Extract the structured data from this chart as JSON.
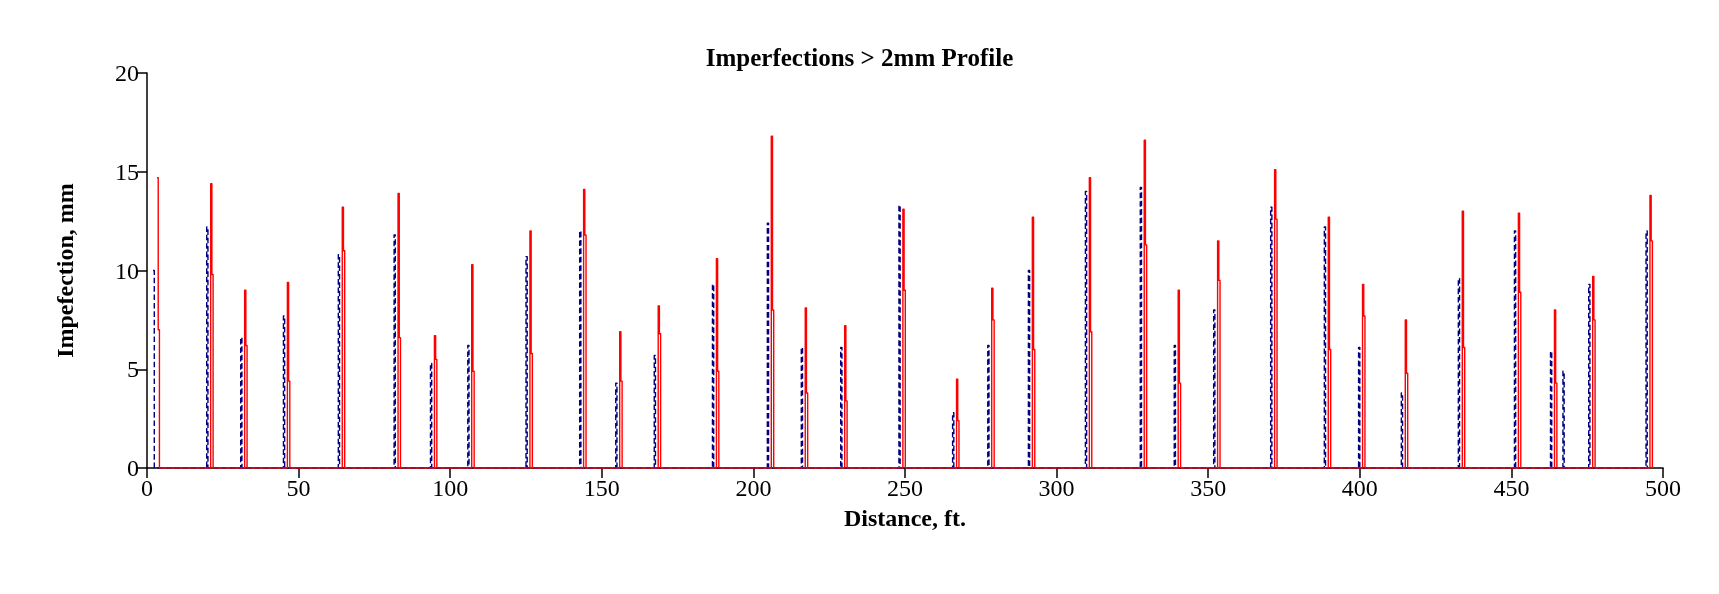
{
  "chart_data": {
    "type": "step",
    "title": "Imperfections > 2mm Profile",
    "xlabel": "Distance, ft.",
    "ylabel": "Impefection, mm",
    "xlim": [
      0,
      500
    ],
    "xticks": [
      0,
      50,
      100,
      150,
      200,
      250,
      300,
      350,
      400,
      450,
      500
    ],
    "ylim": [
      0,
      20
    ],
    "yticks": [
      0,
      5,
      10,
      15,
      20
    ],
    "series": [
      {
        "color": "#000080",
        "line_style": "dashed",
        "x": [
          2.0,
          2.4,
          19.7,
          20.1,
          30.9,
          31.3,
          45.0,
          45.4,
          63.1,
          63.5,
          81.5,
          81.9,
          93.5,
          93.9,
          105.8,
          106.2,
          125.0,
          125.4,
          142.7,
          143.1,
          154.6,
          155.0,
          167.3,
          167.7,
          186.5,
          186.9,
          204.6,
          205.0,
          215.8,
          216.2,
          228.8,
          229.2,
          248.0,
          248.4,
          265.7,
          266.1,
          277.3,
          277.7,
          290.7,
          291.1,
          309.5,
          309.9,
          327.6,
          328.0,
          338.8,
          339.2,
          351.8,
          352.2,
          370.6,
          371.0,
          388.3,
          388.7,
          399.6,
          400.0,
          413.7,
          414.1,
          432.5,
          432.9,
          451.0,
          451.4,
          462.9,
          463.3,
          467.0,
          467.4,
          475.5,
          475.9,
          494.4,
          494.8
        ],
        "values": [
          10.0,
          0,
          12.2,
          0,
          6.6,
          0,
          7.7,
          0,
          10.8,
          0,
          11.8,
          0,
          5.3,
          0,
          6.2,
          0,
          10.7,
          0,
          12.0,
          0,
          4.3,
          0,
          5.7,
          0,
          9.3,
          0,
          12.4,
          0,
          6.1,
          0,
          6.1,
          0,
          13.3,
          0,
          2.8,
          0,
          6.2,
          0,
          10.0,
          0,
          14.0,
          0,
          14.2,
          0,
          6.2,
          0,
          8.0,
          0,
          13.2,
          0,
          12.2,
          0,
          6.1,
          0,
          3.8,
          0,
          9.6,
          0,
          12.0,
          0,
          5.9,
          0,
          4.9,
          0,
          9.3,
          0,
          12.0,
          0
        ]
      },
      {
        "color": "#ff0000",
        "line_style": "solid",
        "x": [
          3.3,
          3.7,
          4.1,
          21.0,
          21.4,
          21.8,
          32.2,
          32.6,
          33.0,
          46.3,
          46.7,
          47.1,
          64.4,
          64.8,
          65.2,
          82.8,
          83.2,
          83.6,
          94.8,
          95.2,
          95.6,
          107.1,
          107.5,
          107.9,
          126.3,
          126.7,
          127.1,
          144.0,
          144.4,
          144.8,
          155.9,
          156.3,
          156.7,
          168.6,
          169.0,
          169.4,
          187.8,
          188.2,
          188.6,
          205.9,
          206.3,
          206.7,
          217.1,
          217.5,
          217.9,
          230.1,
          230.5,
          230.9,
          249.3,
          249.7,
          250.1,
          267.0,
          267.4,
          267.8,
          278.6,
          279.0,
          279.4,
          292.0,
          292.4,
          292.8,
          310.8,
          311.2,
          311.6,
          328.9,
          329.3,
          329.7,
          340.1,
          340.5,
          340.9,
          353.1,
          353.5,
          353.9,
          371.9,
          372.3,
          372.7,
          389.6,
          390.0,
          390.4,
          400.9,
          401.3,
          401.7,
          415.0,
          415.4,
          415.8,
          433.8,
          434.2,
          434.6,
          452.3,
          452.7,
          453.1,
          464.2,
          464.6,
          465.0,
          476.8,
          477.2,
          477.6,
          495.7,
          496.1,
          496.5
        ],
        "values": [
          14.7,
          7.0,
          0,
          14.4,
          9.8,
          0,
          9.0,
          6.2,
          0,
          9.4,
          4.4,
          0,
          13.2,
          11.0,
          0,
          13.9,
          6.6,
          0,
          6.7,
          5.5,
          0,
          10.3,
          4.9,
          0,
          12.0,
          5.8,
          0,
          14.1,
          11.8,
          0,
          6.9,
          4.4,
          0,
          8.2,
          6.8,
          0,
          10.6,
          4.9,
          0,
          16.8,
          8.0,
          0,
          8.1,
          3.8,
          0,
          7.2,
          3.4,
          0,
          13.1,
          9.0,
          0,
          4.5,
          2.4,
          0,
          9.1,
          7.5,
          0,
          12.7,
          6.0,
          0,
          14.7,
          6.9,
          0,
          16.6,
          11.3,
          0,
          9.0,
          4.3,
          0,
          11.5,
          9.5,
          0,
          15.1,
          12.6,
          0,
          12.7,
          6.0,
          0,
          9.3,
          7.7,
          0,
          7.5,
          4.8,
          0,
          13.0,
          6.1,
          0,
          12.9,
          8.9,
          0,
          8.0,
          4.3,
          0,
          9.7,
          7.5,
          0,
          13.8,
          11.5,
          0
        ]
      }
    ]
  }
}
